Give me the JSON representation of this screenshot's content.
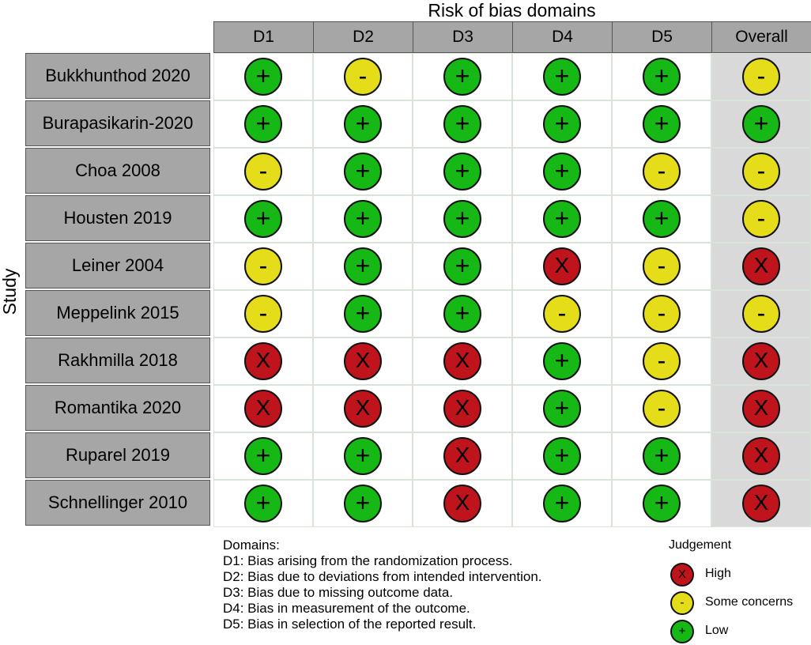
{
  "chart_data": {
    "type": "table",
    "title": "Risk of bias domains",
    "ylabel": "Study",
    "columns": [
      "D1",
      "D2",
      "D3",
      "D4",
      "D5",
      "Overall"
    ],
    "rows": [
      {
        "study": "Bukkhunthod 2020",
        "judgements": [
          "+",
          "-",
          "+",
          "+",
          "+",
          "-"
        ]
      },
      {
        "study": "Burapasikarin-2020",
        "judgements": [
          "+",
          "+",
          "+",
          "+",
          "+",
          "+"
        ]
      },
      {
        "study": "Choa 2008",
        "judgements": [
          "-",
          "+",
          "+",
          "+",
          "-",
          "-"
        ]
      },
      {
        "study": "Housten 2019",
        "judgements": [
          "+",
          "+",
          "+",
          "+",
          "+",
          "-"
        ]
      },
      {
        "study": "Leiner 2004",
        "judgements": [
          "-",
          "+",
          "+",
          "X",
          "-",
          "X"
        ]
      },
      {
        "study": "Meppelink 2015",
        "judgements": [
          "-",
          "+",
          "+",
          "-",
          "-",
          "-"
        ]
      },
      {
        "study": "Rakhmilla 2018",
        "judgements": [
          "X",
          "X",
          "X",
          "+",
          "-",
          "X"
        ]
      },
      {
        "study": "Romantika 2020",
        "judgements": [
          "X",
          "X",
          "X",
          "+",
          "-",
          "X"
        ]
      },
      {
        "study": "Ruparel 2019",
        "judgements": [
          "+",
          "+",
          "X",
          "+",
          "+",
          "X"
        ]
      },
      {
        "study": "Schnellinger 2010",
        "judgements": [
          "+",
          "+",
          "X",
          "+",
          "+",
          "X"
        ]
      }
    ],
    "domains_title": "Domains:",
    "domain_descriptions": [
      "D1: Bias arising from the randomization process.",
      "D2: Bias due to deviations from intended intervention.",
      "D3: Bias due to missing outcome data.",
      "D4: Bias in measurement of the outcome.",
      "D5: Bias in selection of the reported result."
    ],
    "legend": {
      "title": "Judgement",
      "items": [
        {
          "symbol": "X",
          "label": "High"
        },
        {
          "symbol": "-",
          "label": "Some concerns"
        },
        {
          "symbol": "+",
          "label": "Low"
        }
      ]
    },
    "colors": {
      "high": "#c0141c",
      "some_concerns": "#e5dd19",
      "low": "#15b815",
      "header_bg": "#a6a6a6",
      "overall_bg": "#d9d9d9"
    }
  }
}
